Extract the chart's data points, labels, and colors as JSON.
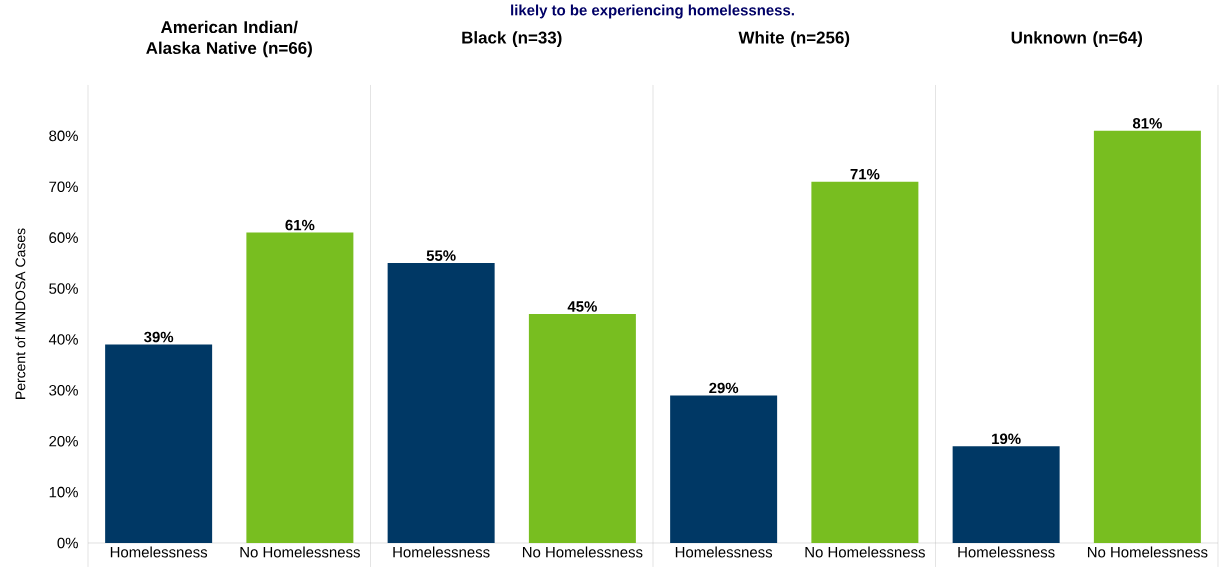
{
  "chart_data": [
    {
      "type": "bar",
      "title": "American Indian/ Alaska Native (n=66)",
      "ylabel": "Percent of MNDOSA Cases",
      "annotations": [
        "likely to be experiencing homelessness."
      ],
      "categories": [
        "Homelessness",
        "No Homelessness"
      ],
      "values": [
        39,
        61
      ],
      "value_labels": [
        "39%",
        "61%"
      ],
      "colors": [
        "#003865",
        "#78be20"
      ],
      "ylim": [
        0,
        90
      ],
      "yticks": [
        {
          "value": 0,
          "label": "0%"
        },
        {
          "value": 10,
          "label": "10%"
        },
        {
          "value": 20,
          "label": "20%"
        },
        {
          "value": 30,
          "label": "30%"
        },
        {
          "value": 40,
          "label": "40%"
        },
        {
          "value": 50,
          "label": "50%"
        },
        {
          "value": 60,
          "label": "60%"
        },
        {
          "value": 70,
          "label": "70%"
        },
        {
          "value": 80,
          "label": "80%"
        }
      ]
    },
    {
      "type": "bar",
      "title": "Black (n=33)",
      "categories": [
        "Homelessness",
        "No Homelessness"
      ],
      "values": [
        55,
        45
      ],
      "value_labels": [
        "55%",
        "45%"
      ],
      "colors": [
        "#003865",
        "#78be20"
      ],
      "ylim": [
        0,
        90
      ],
      "tick_labels": "x"
    },
    {
      "type": "bar",
      "title": "White (n=256)",
      "categories": [
        "Homelessness",
        "No Homelessness"
      ],
      "values": [
        29,
        71
      ],
      "value_labels": [
        "29%",
        "71%"
      ],
      "colors": [
        "#003865",
        "#78be20"
      ],
      "ylim": [
        0,
        90
      ],
      "tick_labels": "x"
    },
    {
      "type": "bar",
      "title": "Unknown (n=64)",
      "categories": [
        "Homelessness",
        "No Homelessness"
      ],
      "values": [
        19,
        81
      ],
      "value_labels": [
        "19%",
        "81%"
      ],
      "colors": [
        "#003865",
        "#78be20"
      ],
      "ylim": [
        0,
        90
      ],
      "tick_labels": "x"
    }
  ]
}
